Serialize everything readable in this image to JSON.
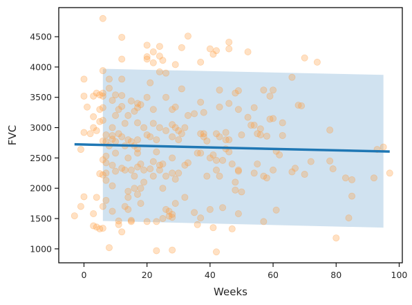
{
  "chart_data": {
    "type": "scatter",
    "title": "",
    "xlabel": "Weeks",
    "ylabel": "FVC",
    "xlim": [
      -8,
      101
    ],
    "ylim": [
      770,
      4980
    ],
    "xticks": [
      0,
      20,
      40,
      60,
      80,
      100
    ],
    "yticks": [
      1000,
      1500,
      2000,
      2500,
      3000,
      3500,
      4000,
      4500
    ],
    "grid": false,
    "colors": {
      "points": "#ff9a3c",
      "trend": "#1f77b4",
      "band": "#bcd6ea"
    },
    "confidence_band": {
      "x": [
        6,
        95
      ],
      "upper": [
        3970,
        3870
      ],
      "lower": [
        1460,
        1350
      ]
    },
    "trend_line": {
      "x": [
        -3,
        97
      ],
      "y": [
        2725,
        2605
      ]
    },
    "series": [
      {
        "type": "scatter",
        "points": [
          [
            -3,
            1545
          ],
          [
            -1,
            2640
          ],
          [
            -1,
            1700
          ],
          [
            0,
            1860
          ],
          [
            0,
            2920
          ],
          [
            0,
            3520
          ],
          [
            0,
            3800
          ],
          [
            1,
            3340
          ],
          [
            2,
            2900
          ],
          [
            3,
            3180
          ],
          [
            3,
            3520
          ],
          [
            3,
            3000
          ],
          [
            3,
            1580
          ],
          [
            3,
            1380
          ],
          [
            4,
            3570
          ],
          [
            4,
            2950
          ],
          [
            4,
            1850
          ],
          [
            4,
            1360
          ],
          [
            5,
            3300
          ],
          [
            5,
            3540
          ],
          [
            5,
            3100
          ],
          [
            5,
            2240
          ],
          [
            5,
            1330
          ],
          [
            6,
            2780
          ],
          [
            6,
            3570
          ],
          [
            6,
            3520
          ],
          [
            6,
            3330
          ],
          [
            6,
            3120
          ],
          [
            6,
            2470
          ],
          [
            6,
            2220
          ],
          [
            6,
            1700
          ],
          [
            6,
            1340
          ],
          [
            6,
            4800
          ],
          [
            6,
            3940
          ],
          [
            7,
            2880
          ],
          [
            7,
            2770
          ],
          [
            7,
            2530
          ],
          [
            7,
            2420
          ],
          [
            7,
            2250
          ],
          [
            7,
            2130
          ],
          [
            7,
            1800
          ],
          [
            8,
            3650
          ],
          [
            8,
            3800
          ],
          [
            8,
            1020
          ],
          [
            8,
            2700
          ],
          [
            9,
            3450
          ],
          [
            9,
            3000
          ],
          [
            9,
            2870
          ],
          [
            9,
            2810
          ],
          [
            9,
            2380
          ],
          [
            9,
            2040
          ],
          [
            9,
            1620
          ],
          [
            10,
            3540
          ],
          [
            10,
            3200
          ],
          [
            10,
            2770
          ],
          [
            10,
            2580
          ],
          [
            10,
            2280
          ],
          [
            11,
            3300
          ],
          [
            11,
            2900
          ],
          [
            11,
            1460
          ],
          [
            11,
            1400
          ],
          [
            12,
            4490
          ],
          [
            12,
            4130
          ],
          [
            12,
            3800
          ],
          [
            12,
            3530
          ],
          [
            12,
            3350
          ],
          [
            12,
            2850
          ],
          [
            12,
            2330
          ],
          [
            12,
            1280
          ],
          [
            13,
            3070
          ],
          [
            13,
            2700
          ],
          [
            13,
            2300
          ],
          [
            13,
            1700
          ],
          [
            14,
            3200
          ],
          [
            14,
            2800
          ],
          [
            14,
            2500
          ],
          [
            14,
            1950
          ],
          [
            14,
            1850
          ],
          [
            14,
            1650
          ],
          [
            15,
            3440
          ],
          [
            15,
            2770
          ],
          [
            15,
            2300
          ],
          [
            15,
            1470
          ],
          [
            15,
            1450
          ],
          [
            16,
            3270
          ],
          [
            16,
            2700
          ],
          [
            16,
            2200
          ],
          [
            16,
            2000
          ],
          [
            17,
            3330
          ],
          [
            17,
            3400
          ],
          [
            17,
            3080
          ],
          [
            17,
            2800
          ],
          [
            17,
            2650
          ],
          [
            17,
            2580
          ],
          [
            17,
            2350
          ],
          [
            17,
            1900
          ],
          [
            18,
            3380
          ],
          [
            18,
            2400
          ],
          [
            18,
            2000
          ],
          [
            18,
            1750
          ],
          [
            19,
            3000
          ],
          [
            19,
            2300
          ],
          [
            19,
            2100
          ],
          [
            20,
            4360
          ],
          [
            20,
            4170
          ],
          [
            20,
            4130
          ],
          [
            20,
            3500
          ],
          [
            20,
            2880
          ],
          [
            20,
            1450
          ],
          [
            21,
            3740
          ],
          [
            21,
            2850
          ],
          [
            21,
            2320
          ],
          [
            22,
            4250
          ],
          [
            22,
            4070
          ],
          [
            22,
            3300
          ],
          [
            22,
            3070
          ],
          [
            22,
            2440
          ],
          [
            22,
            2200
          ],
          [
            23,
            2800
          ],
          [
            23,
            2600
          ],
          [
            23,
            1450
          ],
          [
            23,
            970
          ],
          [
            24,
            4340
          ],
          [
            24,
            4180
          ],
          [
            24,
            3920
          ],
          [
            24,
            3000
          ],
          [
            24,
            2380
          ],
          [
            24,
            2300
          ],
          [
            25,
            4110
          ],
          [
            25,
            2400
          ],
          [
            25,
            2000
          ],
          [
            25,
            1500
          ],
          [
            26,
            3900
          ],
          [
            26,
            3500
          ],
          [
            26,
            2950
          ],
          [
            26,
            2200
          ],
          [
            26,
            1650
          ],
          [
            27,
            1620
          ],
          [
            27,
            1540
          ],
          [
            28,
            3300
          ],
          [
            28,
            3050
          ],
          [
            28,
            2850
          ],
          [
            28,
            2500
          ],
          [
            28,
            2250
          ],
          [
            28,
            1570
          ],
          [
            28,
            1520
          ],
          [
            28,
            980
          ],
          [
            29,
            4040
          ],
          [
            29,
            3340
          ],
          [
            29,
            3000
          ],
          [
            29,
            2150
          ],
          [
            29,
            1750
          ],
          [
            30,
            2950
          ],
          [
            30,
            2800
          ],
          [
            30,
            2250
          ],
          [
            31,
            4320
          ],
          [
            31,
            3640
          ],
          [
            31,
            2900
          ],
          [
            32,
            3000
          ],
          [
            32,
            2380
          ],
          [
            32,
            1850
          ],
          [
            33,
            4510
          ],
          [
            33,
            3200
          ],
          [
            33,
            2420
          ],
          [
            35,
            3230
          ],
          [
            35,
            1600
          ],
          [
            36,
            2580
          ],
          [
            36,
            1400
          ],
          [
            37,
            4080
          ],
          [
            37,
            3420
          ],
          [
            37,
            2900
          ],
          [
            37,
            2580
          ],
          [
            37,
            1510
          ],
          [
            38,
            3250
          ],
          [
            38,
            2900
          ],
          [
            38,
            2850
          ],
          [
            39,
            2780
          ],
          [
            39,
            2200
          ],
          [
            40,
            4300
          ],
          [
            40,
            2500
          ],
          [
            40,
            1650
          ],
          [
            41,
            4210
          ],
          [
            41,
            2550
          ],
          [
            41,
            1350
          ],
          [
            42,
            4270
          ],
          [
            42,
            2900
          ],
          [
            42,
            2460
          ],
          [
            42,
            2300
          ],
          [
            42,
            950
          ],
          [
            43,
            3620
          ],
          [
            43,
            3340
          ],
          [
            43,
            2850
          ],
          [
            43,
            2200
          ],
          [
            44,
            2460
          ],
          [
            44,
            1680
          ],
          [
            45,
            2920
          ],
          [
            45,
            2800
          ],
          [
            45,
            2650
          ],
          [
            46,
            4410
          ],
          [
            46,
            4300
          ],
          [
            46,
            3400
          ],
          [
            46,
            2800
          ],
          [
            46,
            2600
          ],
          [
            47,
            2400
          ],
          [
            47,
            1330
          ],
          [
            48,
            3570
          ],
          [
            48,
            2100
          ],
          [
            48,
            1970
          ],
          [
            49,
            3610
          ],
          [
            49,
            3300
          ],
          [
            49,
            2300
          ],
          [
            49,
            2280
          ],
          [
            49,
            1580
          ],
          [
            50,
            2880
          ],
          [
            50,
            1940
          ],
          [
            52,
            4250
          ],
          [
            52,
            3170
          ],
          [
            53,
            3040
          ],
          [
            54,
            3330
          ],
          [
            54,
            3040
          ],
          [
            54,
            2250
          ],
          [
            55,
            2900
          ],
          [
            55,
            2400
          ],
          [
            56,
            2980
          ],
          [
            56,
            2880
          ],
          [
            57,
            3620
          ],
          [
            57,
            2200
          ],
          [
            57,
            1450
          ],
          [
            58,
            2860
          ],
          [
            58,
            2170
          ],
          [
            59,
            3520
          ],
          [
            59,
            3140
          ],
          [
            60,
            3620
          ],
          [
            60,
            3150
          ],
          [
            60,
            2300
          ],
          [
            61,
            2610
          ],
          [
            61,
            1640
          ],
          [
            62,
            2550
          ],
          [
            63,
            3080
          ],
          [
            63,
            2870
          ],
          [
            66,
            3830
          ],
          [
            66,
            2270
          ],
          [
            67,
            2330
          ],
          [
            68,
            3370
          ],
          [
            69,
            3360
          ],
          [
            70,
            4150
          ],
          [
            70,
            2230
          ],
          [
            72,
            2440
          ],
          [
            74,
            4080
          ],
          [
            78,
            2960
          ],
          [
            78,
            2450
          ],
          [
            79,
            2320
          ],
          [
            80,
            1180
          ],
          [
            83,
            2170
          ],
          [
            84,
            1510
          ],
          [
            85,
            2140
          ],
          [
            85,
            1870
          ],
          [
            92,
            2170
          ],
          [
            93,
            2640
          ],
          [
            95,
            2680
          ],
          [
            97,
            2250
          ]
        ]
      }
    ]
  }
}
